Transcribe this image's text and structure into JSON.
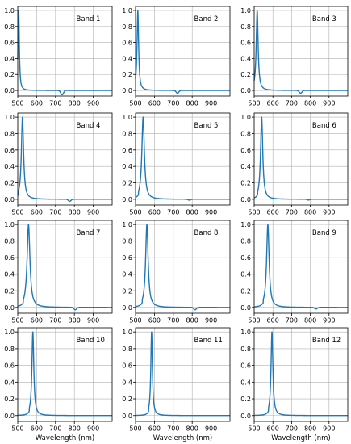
{
  "chart_data": {
    "type": "line",
    "layout": "4x3 grid of small multiples",
    "xlabel": "Wavelength (nm)",
    "xlim": [
      500,
      1000
    ],
    "ylim": [
      -0.07,
      1.05
    ],
    "xticks": [
      "500",
      "600",
      "700",
      "800",
      "900"
    ],
    "yticks": [
      "0.0",
      "0.2",
      "0.4",
      "0.6",
      "0.8",
      "1.0"
    ],
    "grid": true,
    "line_color": "#1f77b4",
    "panels": [
      {
        "label": "Band 1",
        "peak": 505,
        "width": 4,
        "dip_at": 735,
        "dip_depth": 0.055
      },
      {
        "label": "Band 2",
        "peak": 512,
        "width": 5,
        "dip_at": 722,
        "dip_depth": 0.035
      },
      {
        "label": "Band 3",
        "peak": 516,
        "width": 6,
        "dip_at": 748,
        "dip_depth": 0.035
      },
      {
        "label": "Band 4",
        "peak": 525,
        "width": 7,
        "dip_at": 775,
        "dip_depth": 0.025
      },
      {
        "label": "Band 5",
        "peak": 540,
        "width": 8,
        "dip_at": 785,
        "dip_depth": 0.012
      },
      {
        "label": "Band 6",
        "peak": 540,
        "width": 7,
        "dip_at": 790,
        "dip_depth": 0.01
      },
      {
        "label": "Band 7",
        "peak": 557,
        "width": 9,
        "dip_at": 805,
        "dip_depth": 0.03
      },
      {
        "label": "Band 8",
        "peak": 560,
        "width": 8,
        "dip_at": 815,
        "dip_depth": 0.03
      },
      {
        "label": "Band 9",
        "peak": 573,
        "width": 8,
        "dip_at": 830,
        "dip_depth": 0.02
      },
      {
        "label": "Band 10",
        "peak": 580,
        "width": 6,
        "dip_at": 0,
        "dip_depth": 0
      },
      {
        "label": "Band 11",
        "peak": 585,
        "width": 5,
        "dip_at": 0,
        "dip_depth": 0
      },
      {
        "label": "Band 12",
        "peak": 595,
        "width": 6,
        "dip_at": 0,
        "dip_depth": 0
      }
    ]
  }
}
